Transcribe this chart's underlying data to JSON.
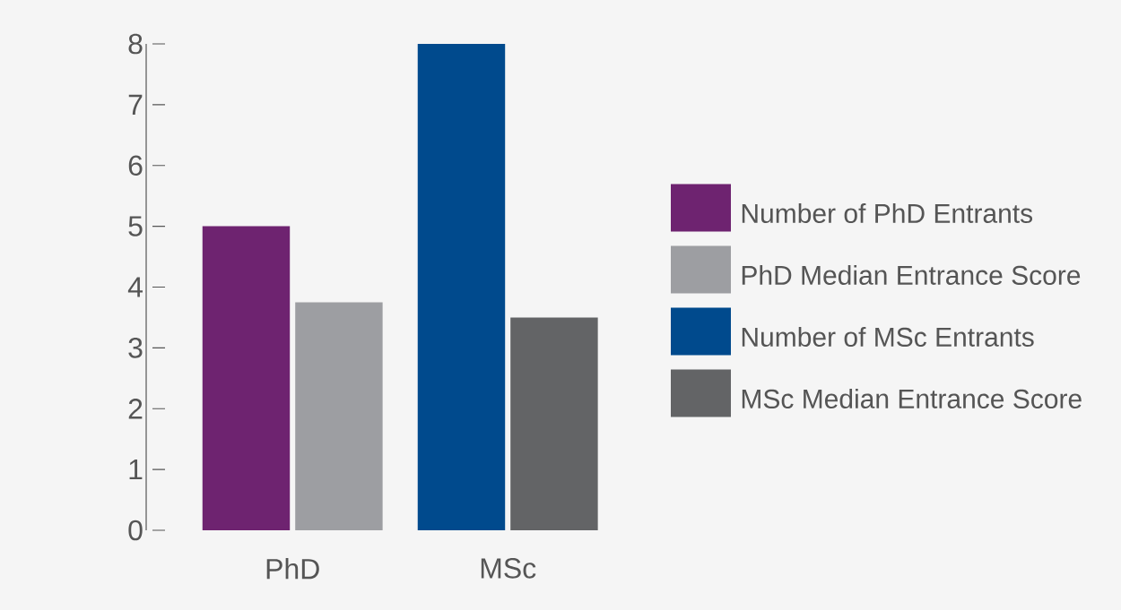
{
  "chart_data": {
    "type": "bar",
    "categories": [
      "PhD",
      "MSc"
    ],
    "series": [
      {
        "name": "Number of PhD Entrants",
        "color": "#6e2370",
        "values": [
          5,
          null
        ]
      },
      {
        "name": "PhD Median Entrance Score",
        "color": "#9d9ea2",
        "values": [
          3.75,
          null
        ]
      },
      {
        "name": "Number of MSc Entrants",
        "color": "#004a8d",
        "values": [
          null,
          8
        ]
      },
      {
        "name": "MSc Median Entrance Score",
        "color": "#636466",
        "values": [
          null,
          3.5
        ]
      }
    ],
    "ylim": [
      0,
      8
    ],
    "yticks": [
      0,
      1,
      2,
      3,
      4,
      5,
      6,
      7,
      8
    ],
    "legend": "right"
  }
}
